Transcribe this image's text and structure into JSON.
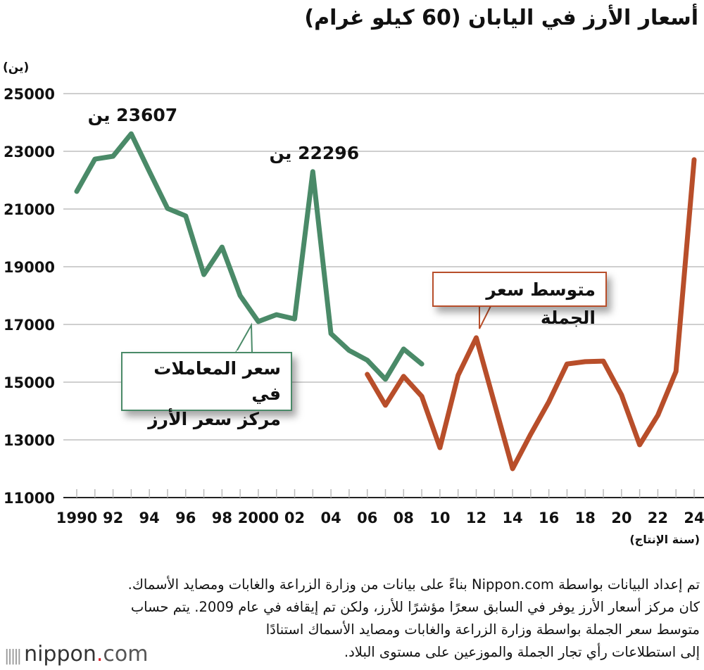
{
  "title": "أسعار الأرز في اليابان (60 كيلو غرام)",
  "chart_data": {
    "type": "line",
    "title": "أسعار الأرز في اليابان (60 كيلو غرام)",
    "ylabel": "(ين)",
    "xlabel": "(سنة الإنتاج)",
    "ylim": [
      11000,
      25000
    ],
    "xlim": [
      1990,
      2024
    ],
    "y_ticks": [
      11000,
      13000,
      15000,
      17000,
      19000,
      21000,
      23000,
      25000
    ],
    "x_ticks": [
      1990,
      1992,
      1994,
      1996,
      1998,
      2000,
      2002,
      2004,
      2006,
      2008,
      2010,
      2012,
      2014,
      2016,
      2018,
      2020,
      2022,
      2024
    ],
    "x_tick_labels": [
      "1990",
      "92",
      "94",
      "96",
      "98",
      "2000",
      "02",
      "04",
      "06",
      "08",
      "10",
      "12",
      "14",
      "16",
      "18",
      "20",
      "22",
      "24"
    ],
    "grid": true,
    "series": [
      {
        "name": "سعر المعاملات في مركز سعر الأرز",
        "name_lines": [
          "سعر المعاملات في",
          "مركز سعر الأرز"
        ],
        "color": "#4a8a68",
        "x": [
          1990,
          1991,
          1992,
          1993,
          1994,
          1995,
          1996,
          1997,
          1998,
          1999,
          2000,
          2001,
          2002,
          2003,
          2004,
          2005,
          2006,
          2007,
          2008,
          2009
        ],
        "values": [
          21610,
          22730,
          22830,
          23607,
          22300,
          21020,
          20760,
          18730,
          19680,
          18000,
          17100,
          17340,
          17190,
          22296,
          16680,
          16100,
          15760,
          15100,
          16150,
          15630
        ]
      },
      {
        "name": "متوسط سعر الجملة",
        "color": "#b84e2a",
        "x": [
          2006,
          2007,
          2008,
          2009,
          2010,
          2011,
          2012,
          2013,
          2014,
          2015,
          2016,
          2017,
          2018,
          2019,
          2020,
          2021,
          2022,
          2023,
          2024
        ],
        "values": [
          15270,
          14200,
          15200,
          14510,
          12730,
          15240,
          16540,
          14270,
          12000,
          13200,
          14320,
          15630,
          15710,
          15730,
          14560,
          12830,
          13850,
          15370,
          22710
        ]
      }
    ],
    "annotations": [
      {
        "text": "23607 ين",
        "x": 1993,
        "y": 23607
      },
      {
        "text": "22296 ين",
        "x": 2003,
        "y": 22296
      }
    ]
  },
  "footer": {
    "lines": [
      "تم إعداد البيانات بواسطة Nippon.com بناءً على بيانات من وزارة الزراعة والغابات ومصايد الأسماك.",
      "كان مركز أسعار الأرز يوفر في السابق سعرًا مؤشرًا للأرز، ولكن تم إيقافه في عام 2009. يتم حساب",
      "متوسط سعر الجملة بواسطة وزارة الزراعة والغابات ومصايد الأسماك استنادًا",
      "إلى استطلاعات رأي تجار الجملة والموزعين على مستوى البلاد."
    ]
  },
  "logo": {
    "text": "nippon",
    "dot": ".",
    "suffix": "com"
  }
}
